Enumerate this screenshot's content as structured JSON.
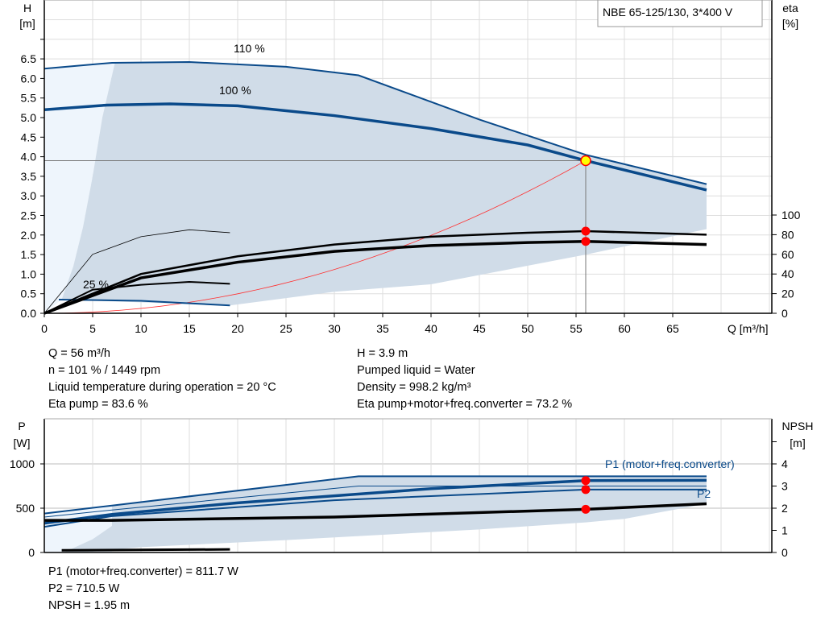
{
  "title": "NBE 65-125/130, 3*400 V",
  "colors": {
    "pump_curve": "#0a4a8a",
    "region": "#d0dce8",
    "region_light": "#eef5fc",
    "system": "#ff3030",
    "duty": "#ffff00",
    "dot": "#ff0000"
  },
  "chart_data": [
    {
      "type": "line",
      "name": "head-efficiency",
      "xlabel": "Q [m³/h]",
      "xlim": [
        0,
        75
      ],
      "xticks": [
        0,
        5,
        10,
        15,
        20,
        25,
        30,
        35,
        40,
        45,
        50,
        55,
        60,
        65
      ],
      "ylabel_left": [
        "H",
        "[m]"
      ],
      "ylim_left": [
        0,
        8
      ],
      "yticks_left": [
        "0.0",
        "0.5",
        "1.0",
        "1.5",
        "2.0",
        "2.5",
        "3.0",
        "3.5",
        "4.0",
        "4.5",
        "5.0",
        "5.5",
        "6.0",
        "6.5"
      ],
      "ylabel_right": [
        "eta",
        "[%]"
      ],
      "ylim_right": [
        0,
        100
      ],
      "yticks_right": [
        0,
        20,
        40,
        60,
        80,
        100
      ],
      "grid": true,
      "annotations": [
        "110 %",
        "100 %",
        "25 %"
      ],
      "series": [
        {
          "name": "110 %",
          "axis": "H",
          "points": [
            [
              0,
              6.25
            ],
            [
              7,
              6.4
            ],
            [
              15,
              6.42
            ],
            [
              25,
              6.3
            ],
            [
              32.5,
              6.08
            ],
            [
              45,
              4.95
            ],
            [
              56,
              4.05
            ],
            [
              68.5,
              3.3
            ]
          ]
        },
        {
          "name": "100 %",
          "axis": "H",
          "points": [
            [
              0,
              5.2
            ],
            [
              6.5,
              5.32
            ],
            [
              13,
              5.35
            ],
            [
              20,
              5.3
            ],
            [
              30,
              5.05
            ],
            [
              40,
              4.72
            ],
            [
              50,
              4.3
            ],
            [
              56,
              3.9
            ],
            [
              68.5,
              3.15
            ]
          ]
        },
        {
          "name": "25 %",
          "axis": "H",
          "points": [
            [
              1.5,
              0.35
            ],
            [
              10,
              0.32
            ],
            [
              19.2,
              0.2
            ]
          ]
        },
        {
          "axis": "eta",
          "points": [
            [
              0,
              0
            ],
            [
              10,
              40
            ],
            [
              20,
              58
            ],
            [
              30,
              70
            ],
            [
              40,
              78
            ],
            [
              50,
              82
            ],
            [
              56,
              83.6
            ],
            [
              68.5,
              80
            ]
          ]
        },
        {
          "axis": "eta",
          "points": [
            [
              0,
              0
            ],
            [
              10,
              36
            ],
            [
              20,
              52
            ],
            [
              30,
              63
            ],
            [
              40,
              69
            ],
            [
              50,
              72
            ],
            [
              56,
              73.2
            ],
            [
              68.5,
              70
            ]
          ]
        },
        {
          "axis": "eta",
          "points": [
            [
              0,
              0
            ],
            [
              5,
              60
            ],
            [
              10,
              78
            ],
            [
              15,
              85
            ],
            [
              19.2,
              82
            ]
          ]
        },
        {
          "axis": "eta",
          "points": [
            [
              0,
              0
            ],
            [
              5,
              24
            ],
            [
              10,
              29
            ],
            [
              15,
              32
            ],
            [
              19.2,
              30
            ]
          ]
        }
      ],
      "duty_point": {
        "Q": 56,
        "H": 3.9,
        "eta_pump": 83.6,
        "eta_total": 73.2
      }
    },
    {
      "type": "line",
      "name": "power-npsh",
      "xlim": [
        0,
        75
      ],
      "ylabel_left": [
        "P",
        "[W]"
      ],
      "ylim_left": [
        0,
        1500
      ],
      "yticks_left": [
        0,
        500,
        1000
      ],
      "ylabel_right": [
        "NPSH",
        "[m]"
      ],
      "ylim_right": [
        0,
        6
      ],
      "yticks_right": [
        0,
        1,
        2,
        3,
        4
      ],
      "series": [
        {
          "name": "P1 (motor+freq.converter)",
          "points": [
            [
              0,
              440
            ],
            [
              7,
              530
            ],
            [
              32.5,
              860
            ],
            [
              68.5,
              860
            ]
          ]
        },
        {
          "points": [
            [
              0,
              400
            ],
            [
              7,
              480
            ],
            [
              32.5,
              750
            ],
            [
              68.5,
              750
            ]
          ]
        },
        {
          "points": [
            [
              0,
              330
            ],
            [
              7,
              430
            ],
            [
              20,
              560
            ],
            [
              40,
              720
            ],
            [
              56,
              811.7
            ],
            [
              68.5,
              815
            ]
          ]
        },
        {
          "name": "P2",
          "points": [
            [
              0,
              290
            ],
            [
              7,
              410
            ],
            [
              30,
              590
            ],
            [
              56,
              710.5
            ],
            [
              68.5,
              710
            ]
          ]
        },
        {
          "axis": "NPSH",
          "points": [
            [
              0,
              1.45
            ],
            [
              7,
              1.45
            ],
            [
              30,
              1.6
            ],
            [
              56,
              1.95
            ],
            [
              68.5,
              2.2
            ]
          ]
        },
        {
          "points": [
            [
              1.8,
              25
            ],
            [
              19.2,
              35
            ]
          ]
        }
      ],
      "duty_point": {
        "P1": 811.7,
        "P2": 710.5,
        "NPSH": 1.95
      }
    }
  ],
  "info_top_left": [
    "Q = 56 m³/h",
    "n = 101 % / 1449 rpm",
    "Liquid temperature during operation = 20 °C",
    "Eta pump = 83.6 %"
  ],
  "info_top_right": [
    "H = 3.9 m",
    "Pumped liquid = Water",
    "Density = 998.2 kg/m³",
    "Eta pump+motor+freq.converter = 73.2 %"
  ],
  "info_bottom": [
    "P1 (motor+freq.converter) = 811.7 W",
    "P2 = 710.5 W",
    "NPSH = 1.95 m"
  ]
}
